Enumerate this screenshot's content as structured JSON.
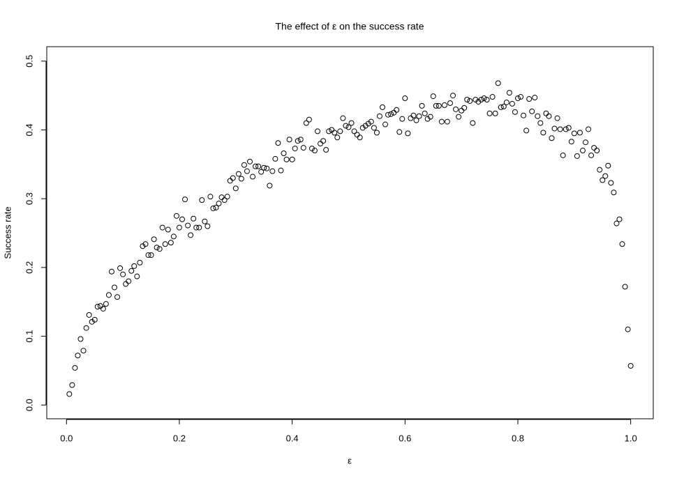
{
  "chart_data": {
    "type": "scatter",
    "title": "The effect of ε on the success rate",
    "x_label": "ε",
    "y_label": "Success rate",
    "color": "#000000",
    "xlim": [
      -0.035,
      1.04
    ],
    "ylim": [
      -0.02,
      0.521
    ],
    "xticks": [
      {
        "value": 0,
        "label": "0.0"
      },
      0.2,
      0.4,
      0.6,
      0.8,
      {
        "value": 1,
        "label": "1.0"
      }
    ],
    "yticks": [
      {
        "value": 0,
        "label": "0.0"
      },
      0.1,
      0.2,
      0.3,
      0.4,
      0.5
    ],
    "x": [
      0.005,
      0.01,
      0.015,
      0.02,
      0.025,
      0.03,
      0.035,
      0.04,
      0.045,
      0.05,
      0.055,
      0.06,
      0.065,
      0.07,
      0.075,
      0.08,
      0.085,
      0.09,
      0.095,
      0.1,
      0.105,
      0.11,
      0.115,
      0.12,
      0.125,
      0.13,
      0.135,
      0.14,
      0.145,
      0.15,
      0.155,
      0.16,
      0.165,
      0.17,
      0.175,
      0.18,
      0.185,
      0.19,
      0.195,
      0.2,
      0.205,
      0.21,
      0.215,
      0.22,
      0.225,
      0.23,
      0.235,
      0.24,
      0.245,
      0.25,
      0.255,
      0.26,
      0.265,
      0.27,
      0.275,
      0.28,
      0.285,
      0.29,
      0.295,
      0.3,
      0.305,
      0.31,
      0.315,
      0.32,
      0.325,
      0.33,
      0.335,
      0.34,
      0.345,
      0.35,
      0.355,
      0.36,
      0.365,
      0.37,
      0.375,
      0.38,
      0.385,
      0.39,
      0.395,
      0.4,
      0.405,
      0.41,
      0.415,
      0.42,
      0.425,
      0.43,
      0.435,
      0.44,
      0.445,
      0.45,
      0.455,
      0.46,
      0.465,
      0.47,
      0.475,
      0.48,
      0.485,
      0.49,
      0.495,
      0.5,
      0.505,
      0.51,
      0.515,
      0.52,
      0.525,
      0.53,
      0.535,
      0.54,
      0.545,
      0.55,
      0.555,
      0.56,
      0.565,
      0.57,
      0.575,
      0.58,
      0.585,
      0.59,
      0.595,
      0.6,
      0.605,
      0.61,
      0.615,
      0.62,
      0.625,
      0.63,
      0.635,
      0.64,
      0.645,
      0.65,
      0.655,
      0.66,
      0.665,
      0.67,
      0.675,
      0.68,
      0.685,
      0.69,
      0.695,
      0.7,
      0.705,
      0.71,
      0.715,
      0.72,
      0.725,
      0.73,
      0.735,
      0.74,
      0.745,
      0.75,
      0.755,
      0.76,
      0.765,
      0.77,
      0.775,
      0.78,
      0.785,
      0.79,
      0.795,
      0.8,
      0.805,
      0.81,
      0.815,
      0.82,
      0.825,
      0.83,
      0.835,
      0.84,
      0.845,
      0.85,
      0.855,
      0.86,
      0.865,
      0.87,
      0.875,
      0.88,
      0.885,
      0.89,
      0.895,
      0.9,
      0.905,
      0.91,
      0.915,
      0.92,
      0.925,
      0.93,
      0.935,
      0.94,
      0.945,
      0.95,
      0.955,
      0.96,
      0.965,
      0.97,
      0.975,
      0.98,
      0.985,
      0.99,
      0.995,
      1.0
    ],
    "values": [
      0.016,
      0.029,
      0.054,
      0.072,
      0.096,
      0.079,
      0.112,
      0.131,
      0.121,
      0.124,
      0.143,
      0.144,
      0.14,
      0.147,
      0.16,
      0.194,
      0.171,
      0.157,
      0.199,
      0.19,
      0.176,
      0.18,
      0.195,
      0.202,
      0.187,
      0.207,
      0.231,
      0.234,
      0.218,
      0.218,
      0.241,
      0.229,
      0.227,
      0.258,
      0.234,
      0.255,
      0.236,
      0.245,
      0.275,
      0.258,
      0.27,
      0.299,
      0.261,
      0.247,
      0.271,
      0.258,
      0.258,
      0.298,
      0.267,
      0.26,
      0.303,
      0.286,
      0.287,
      0.293,
      0.302,
      0.298,
      0.303,
      0.326,
      0.33,
      0.315,
      0.336,
      0.329,
      0.349,
      0.34,
      0.354,
      0.332,
      0.347,
      0.347,
      0.339,
      0.345,
      0.344,
      0.319,
      0.34,
      0.358,
      0.381,
      0.341,
      0.366,
      0.357,
      0.386,
      0.357,
      0.373,
      0.384,
      0.386,
      0.374,
      0.41,
      0.415,
      0.373,
      0.37,
      0.398,
      0.38,
      0.384,
      0.371,
      0.398,
      0.4,
      0.396,
      0.389,
      0.398,
      0.417,
      0.406,
      0.404,
      0.41,
      0.398,
      0.393,
      0.389,
      0.403,
      0.406,
      0.409,
      0.412,
      0.403,
      0.396,
      0.42,
      0.433,
      0.408,
      0.422,
      0.423,
      0.425,
      0.429,
      0.397,
      0.416,
      0.446,
      0.395,
      0.417,
      0.421,
      0.414,
      0.42,
      0.435,
      0.424,
      0.416,
      0.419,
      0.449,
      0.435,
      0.435,
      0.412,
      0.436,
      0.412,
      0.439,
      0.45,
      0.43,
      0.419,
      0.428,
      0.432,
      0.444,
      0.442,
      0.41,
      0.444,
      0.441,
      0.444,
      0.446,
      0.444,
      0.424,
      0.448,
      0.424,
      0.468,
      0.433,
      0.434,
      0.44,
      0.454,
      0.438,
      0.426,
      0.446,
      0.448,
      0.421,
      0.399,
      0.445,
      0.427,
      0.447,
      0.42,
      0.41,
      0.396,
      0.424,
      0.42,
      0.388,
      0.402,
      0.417,
      0.401,
      0.363,
      0.401,
      0.403,
      0.383,
      0.395,
      0.362,
      0.396,
      0.37,
      0.382,
      0.401,
      0.363,
      0.374,
      0.37,
      0.342,
      0.327,
      0.333,
      0.348,
      0.323,
      0.309,
      0.264,
      0.27,
      0.234,
      0.172,
      0.11,
      0.057
    ]
  }
}
